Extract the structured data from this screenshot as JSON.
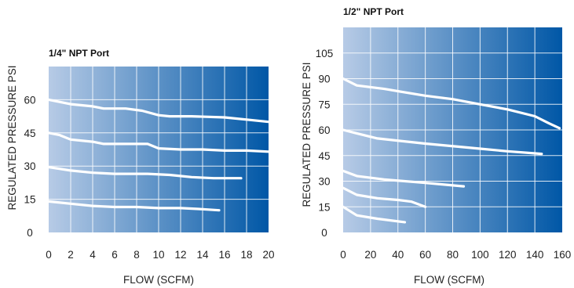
{
  "chart_data": [
    {
      "type": "line",
      "title": "1/4\" NPT Port",
      "xlabel": "FLOW (SCFM)",
      "ylabel": "REGULATED PRESSURE PSI",
      "xlim": [
        0,
        20
      ],
      "ylim": [
        0,
        75
      ],
      "x_ticks": [
        "0",
        "2",
        "4",
        "6",
        "8",
        "10",
        "12",
        "14",
        "16",
        "18",
        "20"
      ],
      "y_ticks": [
        "0",
        "15",
        "30",
        "45",
        "60"
      ],
      "grid": true,
      "gradient": [
        "#b7cbe6",
        "#0057a6"
      ],
      "series": [
        {
          "points": [
            [
              0,
              60
            ],
            [
              2,
              58
            ],
            [
              4,
              57
            ],
            [
              5,
              56
            ],
            [
              7,
              56
            ],
            [
              8.5,
              55
            ],
            [
              10,
              53
            ],
            [
              11,
              52.5
            ],
            [
              13,
              52.5
            ],
            [
              16,
              52
            ],
            [
              18,
              51
            ],
            [
              20,
              50
            ]
          ]
        },
        {
          "points": [
            [
              0,
              45
            ],
            [
              1,
              44
            ],
            [
              2,
              42
            ],
            [
              4,
              41
            ],
            [
              5,
              40
            ],
            [
              7,
              40
            ],
            [
              9,
              40
            ],
            [
              10,
              38
            ],
            [
              12,
              37.5
            ],
            [
              14,
              37.5
            ],
            [
              16,
              37
            ],
            [
              18,
              37
            ],
            [
              20,
              36.5
            ]
          ]
        },
        {
          "points": [
            [
              0,
              29.5
            ],
            [
              2,
              28
            ],
            [
              4,
              27
            ],
            [
              6,
              26.5
            ],
            [
              9,
              26.5
            ],
            [
              11,
              26
            ],
            [
              13,
              25
            ],
            [
              15,
              24.5
            ],
            [
              17.5,
              24.5
            ]
          ]
        },
        {
          "points": [
            [
              0,
              14
            ],
            [
              2,
              13
            ],
            [
              4,
              12
            ],
            [
              6,
              11.5
            ],
            [
              8,
              11.5
            ],
            [
              10,
              11
            ],
            [
              12,
              11
            ],
            [
              14,
              10.5
            ],
            [
              15.5,
              10
            ]
          ]
        }
      ]
    },
    {
      "type": "line",
      "title": "1/2\" NPT Port",
      "xlabel": "FLOW (SCFM)",
      "ylabel": "REGULATED PRESSURE PSI",
      "xlim": [
        0,
        160
      ],
      "ylim": [
        0,
        120
      ],
      "x_ticks": [
        "0",
        "20",
        "40",
        "60",
        "80",
        "100",
        "120",
        "140",
        "160"
      ],
      "y_ticks": [
        "0",
        "15",
        "30",
        "45",
        "60",
        "75",
        "90",
        "105"
      ],
      "grid": true,
      "gradient": [
        "#b7cbe6",
        "#0057a6"
      ],
      "series": [
        {
          "points": [
            [
              0,
              90
            ],
            [
              10,
              86
            ],
            [
              30,
              84
            ],
            [
              60,
              80
            ],
            [
              80,
              78
            ],
            [
              100,
              75
            ],
            [
              120,
              72
            ],
            [
              140,
              68
            ],
            [
              150,
              64
            ],
            [
              158,
              61
            ]
          ]
        },
        {
          "points": [
            [
              0,
              60
            ],
            [
              10,
              58
            ],
            [
              25,
              55
            ],
            [
              60,
              52
            ],
            [
              100,
              49
            ],
            [
              120,
              47.5
            ],
            [
              145,
              46
            ]
          ]
        },
        {
          "points": [
            [
              0,
              36
            ],
            [
              10,
              33
            ],
            [
              30,
              31
            ],
            [
              60,
              29
            ],
            [
              88,
              27
            ]
          ]
        },
        {
          "points": [
            [
              0,
              26
            ],
            [
              10,
              22
            ],
            [
              25,
              20
            ],
            [
              40,
              19
            ],
            [
              50,
              18
            ],
            [
              60,
              15
            ]
          ]
        },
        {
          "points": [
            [
              0,
              15
            ],
            [
              10,
              10
            ],
            [
              25,
              8
            ],
            [
              45,
              6
            ]
          ]
        }
      ]
    }
  ]
}
